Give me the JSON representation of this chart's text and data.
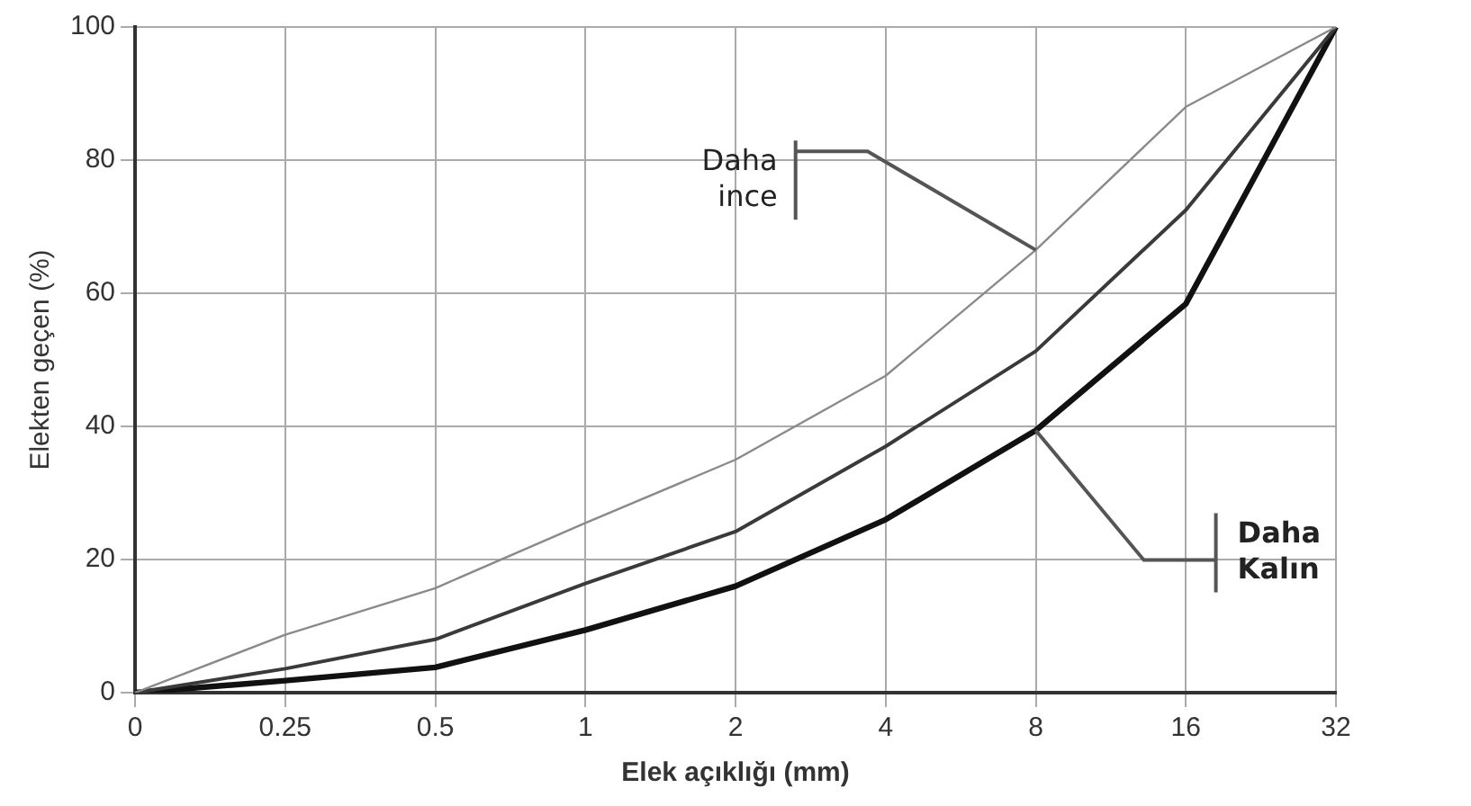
{
  "chart_data": {
    "type": "line",
    "xlabel": "Elek açıklığı (mm)",
    "ylabel": "Elekten geçen (%)",
    "categories": [
      "0",
      "0.25",
      "0.5",
      "1",
      "2",
      "4",
      "8",
      "16",
      "32"
    ],
    "series": [
      {
        "color": "#8a8a8a",
        "values": [
          0,
          8.7,
          15.7,
          25.5,
          35,
          47.6,
          66.5,
          88,
          100
        ]
      },
      {
        "color": "#3a3a3a",
        "values": [
          0,
          3.6,
          8,
          16.4,
          24.2,
          37,
          51.3,
          72.5,
          100
        ]
      },
      {
        "color": "#111111",
        "values": [
          0,
          1.8,
          3.8,
          9.4,
          16,
          26,
          39.4,
          58.4,
          100
        ]
      }
    ],
    "ylim": [
      0,
      100
    ],
    "yticks": [
      0,
      20,
      40,
      60,
      80,
      100
    ],
    "grid": true,
    "legend": false,
    "marker": "none",
    "line_style": "solid",
    "annotations": [
      {
        "text": "Daha ince",
        "x": "8",
        "y": 66.5
      },
      {
        "text": "Daha Kalın",
        "x": "8",
        "y": 39.4
      }
    ]
  }
}
